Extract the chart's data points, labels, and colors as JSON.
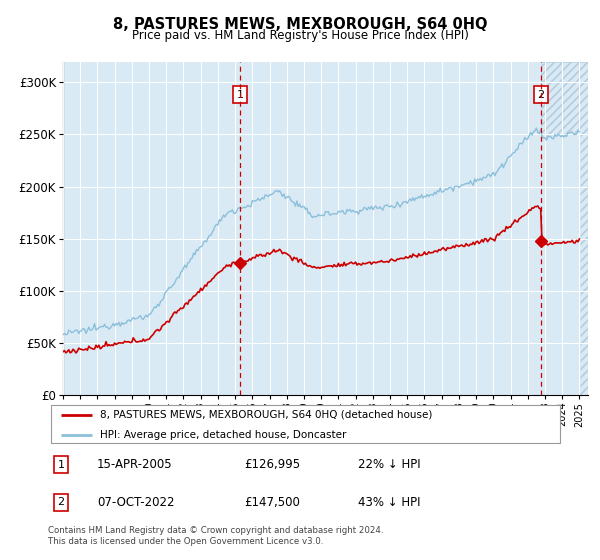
{
  "title": "8, PASTURES MEWS, MEXBOROUGH, S64 0HQ",
  "subtitle": "Price paid vs. HM Land Registry's House Price Index (HPI)",
  "hpi_color": "#8bbfda",
  "price_color": "#cc0000",
  "bg_color": "#daeaf5",
  "hatch_color": "#c0d8ec",
  "transaction1_date": 2005.29,
  "transaction1_price": 126995,
  "transaction2_date": 2022.77,
  "transaction2_price": 147500,
  "xmin": 1995.0,
  "xmax": 2025.5,
  "ymin": 0,
  "ymax": 320000,
  "yticks": [
    0,
    50000,
    100000,
    150000,
    200000,
    250000,
    300000
  ],
  "ytick_labels": [
    "£0",
    "£50K",
    "£100K",
    "£150K",
    "£200K",
    "£250K",
    "£300K"
  ],
  "footer_text": "Contains HM Land Registry data © Crown copyright and database right 2024.\nThis data is licensed under the Open Government Licence v3.0.",
  "legend_line1": "8, PASTURES MEWS, MEXBOROUGH, S64 0HQ (detached house)",
  "legend_line2": "HPI: Average price, detached house, Doncaster",
  "table_row1": [
    "1",
    "15-APR-2005",
    "£126,995",
    "22% ↓ HPI"
  ],
  "table_row2": [
    "2",
    "07-OCT-2022",
    "£147,500",
    "43% ↓ HPI"
  ]
}
